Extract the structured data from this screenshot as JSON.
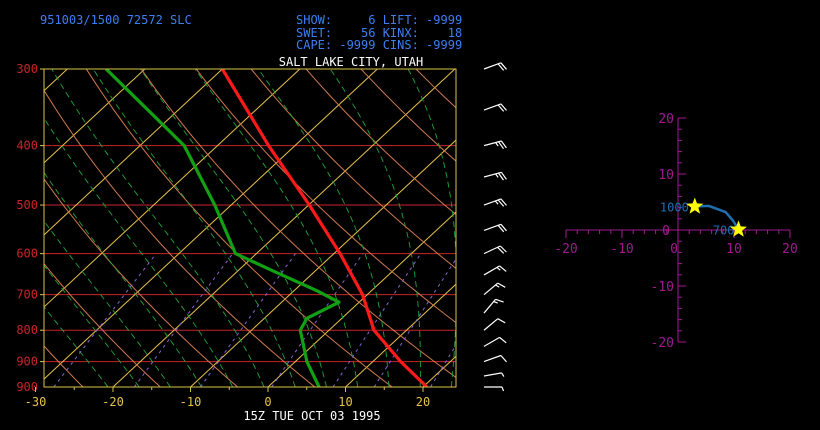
{
  "header": {
    "station": "951003/1500 72572  SLC",
    "indices_line1": "SHOW:     6 LIFT: -9999",
    "indices_line2": "SWET:    56 KINX:    18",
    "indices_line3": "CAPE: -9999 CINS: -9999",
    "location": "SALT LAKE CITY, UTAH",
    "footer": "15Z TUE OCT 03 1995"
  },
  "colors": {
    "background": "#000000",
    "text_blue": "#3d7ff2",
    "frame": "#d7c34a",
    "isobar": "#c8242b",
    "isotherm": "#e9c24a",
    "dry_adiabat": "#d07a4e",
    "moist_adiabat": "#1fa53c",
    "mixing_ratio": "#8a63d9",
    "temperature": "#ff1a1a",
    "dewpoint": "#12a112",
    "hodo_axes": "#a01a8f",
    "hodo_line": "#1f6fb0",
    "hodo_star": "#ffff00",
    "wind_barb": "#ffffff"
  },
  "chart_data": [
    {
      "type": "line",
      "chart_kind": "skew-T log-P sounding",
      "title": "SALT LAKE CITY, UTAH",
      "xlabel": "15Z TUE OCT 03 1995",
      "pressure_ticks": [
        300,
        400,
        500,
        600,
        700,
        800,
        900
      ],
      "pressure_tick_labels": [
        "300",
        "400",
        "500",
        "600",
        "700",
        "800",
        "900"
      ],
      "bottom_pressure": 990,
      "temp_ticks": [
        -30,
        -20,
        -10,
        0,
        10,
        20
      ],
      "temp_tick_labels": [
        "-30",
        "-20",
        "-10",
        "0",
        "10",
        "20"
      ],
      "xlim": [
        -30,
        25
      ],
      "ylim": [
        990,
        300
      ],
      "series": [
        {
          "series_id": "temperature",
          "color": "#ff1a1a",
          "points": [
            {
              "p": 990,
              "t": 20.5
            },
            {
              "p": 900,
              "t": 13.6
            },
            {
              "p": 800,
              "t": 5.8
            },
            {
              "p": 700,
              "t": -0.6
            },
            {
              "p": 600,
              "t": -9.2
            },
            {
              "p": 500,
              "t": -19.9
            },
            {
              "p": 400,
              "t": -33.4
            },
            {
              "p": 300,
              "t": -50.0
            }
          ]
        },
        {
          "series_id": "dewpoint",
          "color": "#12a112",
          "points": [
            {
              "p": 990,
              "t": 6.6
            },
            {
              "p": 900,
              "t": 1.5
            },
            {
              "p": 800,
              "t": -3.7
            },
            {
              "p": 765,
              "t": -4.5
            },
            {
              "p": 720,
              "t": -2.6
            },
            {
              "p": 690,
              "t": -7.0
            },
            {
              "p": 640,
              "t": -15.5
            },
            {
              "p": 600,
              "t": -22.7
            },
            {
              "p": 500,
              "t": -32.1
            },
            {
              "p": 400,
              "t": -44.3
            },
            {
              "p": 300,
              "t": -65.0
            }
          ]
        }
      ],
      "wind_barbs": [
        {
          "p": 990,
          "speed_kt": 5,
          "dir_deg": 270
        },
        {
          "p": 950,
          "speed_kt": 5,
          "dir_deg": 260
        },
        {
          "p": 900,
          "speed_kt": 10,
          "dir_deg": 250
        },
        {
          "p": 850,
          "speed_kt": 10,
          "dir_deg": 240
        },
        {
          "p": 800,
          "speed_kt": 10,
          "dir_deg": 230
        },
        {
          "p": 750,
          "speed_kt": 15,
          "dir_deg": 220
        },
        {
          "p": 700,
          "speed_kt": 15,
          "dir_deg": 230
        },
        {
          "p": 650,
          "speed_kt": 15,
          "dir_deg": 240
        },
        {
          "p": 600,
          "speed_kt": 20,
          "dir_deg": 245
        },
        {
          "p": 550,
          "speed_kt": 20,
          "dir_deg": 250
        },
        {
          "p": 500,
          "speed_kt": 25,
          "dir_deg": 250
        },
        {
          "p": 450,
          "speed_kt": 25,
          "dir_deg": 255
        },
        {
          "p": 400,
          "speed_kt": 25,
          "dir_deg": 255
        },
        {
          "p": 350,
          "speed_kt": 20,
          "dir_deg": 250
        },
        {
          "p": 300,
          "speed_kt": 20,
          "dir_deg": 250
        }
      ]
    },
    {
      "type": "line",
      "chart_kind": "hodograph",
      "x_ticks": [
        -20,
        -10,
        0,
        10,
        20
      ],
      "x_tick_labels": [
        "-20",
        "-10",
        "0",
        "10",
        "20"
      ],
      "y_ticks": [
        -20,
        -10,
        10,
        20
      ],
      "y_tick_labels": [
        "-20",
        "-10",
        "10",
        "20"
      ],
      "origin_label": "0",
      "xlim": [
        -20,
        20
      ],
      "ylim": [
        -20,
        20
      ],
      "points": [
        {
          "u": 3.0,
          "v": 4.2
        },
        {
          "u": 5.5,
          "v": 4.3
        },
        {
          "u": 8.5,
          "v": 3.2
        },
        {
          "u": 9.8,
          "v": 1.7
        },
        {
          "u": 10.8,
          "v": 0.1
        }
      ],
      "markers": [
        {
          "u": 3.0,
          "v": 4.2,
          "label": "1000"
        },
        {
          "u": 10.8,
          "v": 0.1,
          "label": "700"
        }
      ]
    }
  ]
}
